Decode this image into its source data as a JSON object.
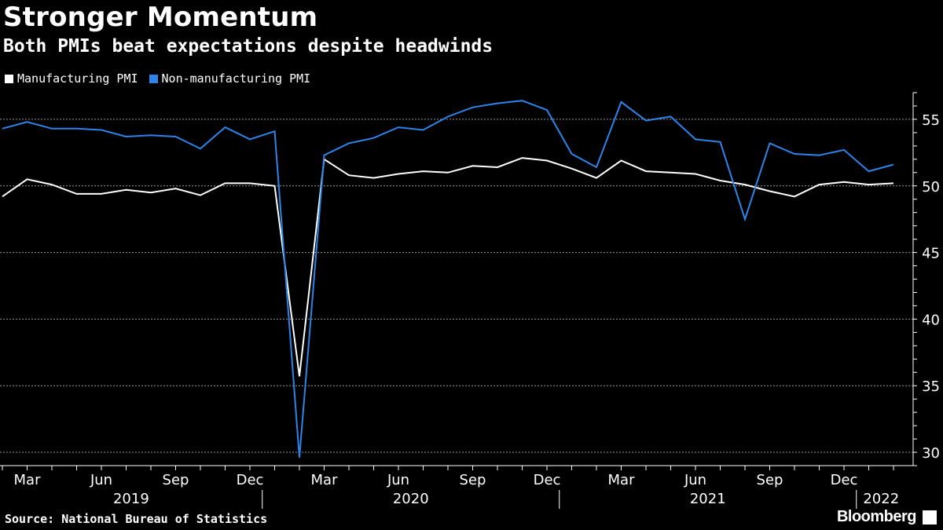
{
  "header": {
    "title": "Stronger Momentum",
    "subtitle": "Both PMIs beat expectations despite headwinds"
  },
  "footer": {
    "source": "Source: National Bureau of Statistics",
    "brand": "Bloomberg"
  },
  "chart_data": {
    "type": "line",
    "x": [
      "2019-02",
      "2019-03",
      "2019-04",
      "2019-05",
      "2019-06",
      "2019-07",
      "2019-08",
      "2019-09",
      "2019-10",
      "2019-11",
      "2019-12",
      "2020-01",
      "2020-02",
      "2020-03",
      "2020-04",
      "2020-05",
      "2020-06",
      "2020-07",
      "2020-08",
      "2020-09",
      "2020-10",
      "2020-11",
      "2020-12",
      "2021-01",
      "2021-02",
      "2021-03",
      "2021-04",
      "2021-05",
      "2021-06",
      "2021-07",
      "2021-08",
      "2021-09",
      "2021-10",
      "2021-11",
      "2021-12",
      "2022-01",
      "2022-02"
    ],
    "series": [
      {
        "name": "Manufacturing PMI",
        "color": "#ffffff",
        "values": [
          49.2,
          50.5,
          50.1,
          49.4,
          49.4,
          49.7,
          49.5,
          49.8,
          49.3,
          50.2,
          50.2,
          50.0,
          35.7,
          52.0,
          50.8,
          50.6,
          50.9,
          51.1,
          51.0,
          51.5,
          51.4,
          52.1,
          51.9,
          51.3,
          50.6,
          51.9,
          51.1,
          51.0,
          50.9,
          50.4,
          50.1,
          49.6,
          49.2,
          50.1,
          50.3,
          50.1,
          50.2
        ]
      },
      {
        "name": "Non-manufacturing PMI",
        "color": "#2d84ea",
        "values": [
          54.3,
          54.8,
          54.3,
          54.3,
          54.2,
          53.7,
          53.8,
          53.7,
          52.8,
          54.4,
          53.5,
          54.1,
          29.6,
          52.3,
          53.2,
          53.6,
          54.4,
          54.2,
          55.2,
          55.9,
          56.2,
          56.4,
          55.7,
          52.4,
          51.4,
          56.3,
          54.9,
          55.2,
          53.5,
          53.3,
          47.5,
          53.2,
          52.4,
          52.3,
          52.7,
          51.1,
          51.6
        ]
      }
    ],
    "x_tick_labels": [
      {
        "date": "2019-03",
        "label": "Mar"
      },
      {
        "date": "2019-06",
        "label": "Jun"
      },
      {
        "date": "2019-09",
        "label": "Sep"
      },
      {
        "date": "2019-12",
        "label": "Dec"
      },
      {
        "date": "2020-03",
        "label": "Mar"
      },
      {
        "date": "2020-06",
        "label": "Jun"
      },
      {
        "date": "2020-09",
        "label": "Sep"
      },
      {
        "date": "2020-12",
        "label": "Dec"
      },
      {
        "date": "2021-03",
        "label": "Mar"
      },
      {
        "date": "2021-06",
        "label": "Jun"
      },
      {
        "date": "2021-09",
        "label": "Sep"
      },
      {
        "date": "2021-12",
        "label": "Dec"
      }
    ],
    "years": [
      {
        "label": "2019",
        "start": "2019-01",
        "end": "2019-12"
      },
      {
        "label": "2020",
        "start": "2020-01",
        "end": "2020-12"
      },
      {
        "label": "2021",
        "start": "2021-01",
        "end": "2021-12"
      },
      {
        "label": "2022",
        "start": "2022-01",
        "end": "2022-02"
      }
    ],
    "y_ticks": [
      30,
      35,
      40,
      45,
      50,
      55
    ],
    "ylim": [
      29,
      57
    ],
    "grid": true,
    "legend_position": "top-left",
    "y_axis_side": "right",
    "title": "Stronger Momentum",
    "xlabel": "",
    "ylabel": ""
  }
}
